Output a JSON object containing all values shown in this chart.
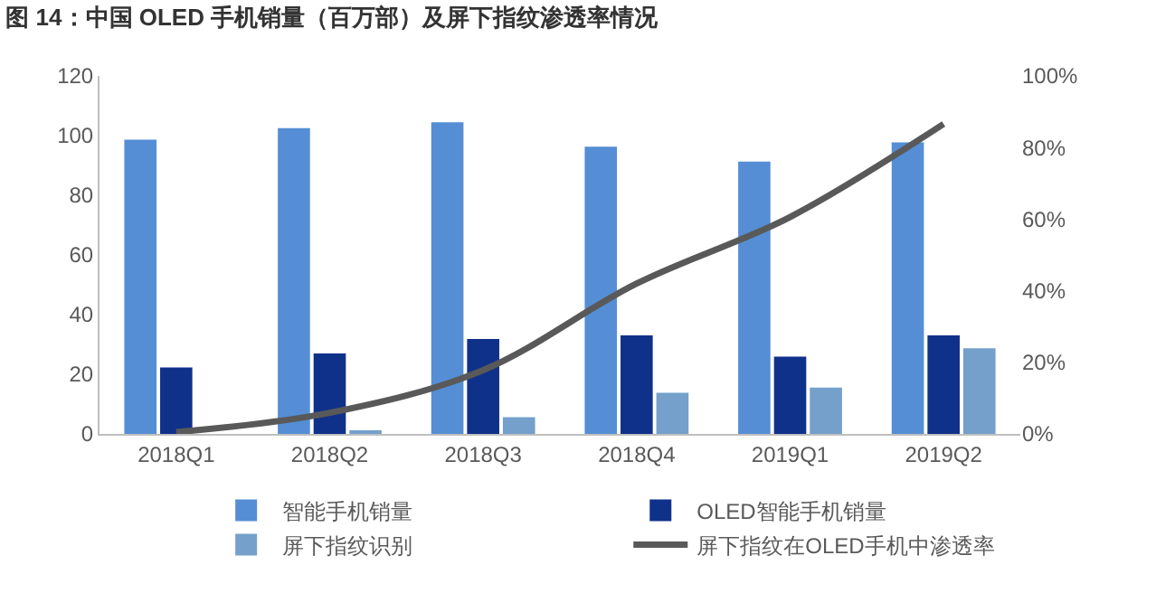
{
  "chart_data": {
    "type": "bar",
    "title": "图 14：中国 OLED 手机销量（百万部）及屏下指纹渗透率情况",
    "categories": [
      "2018Q1",
      "2018Q2",
      "2018Q3",
      "2018Q4",
      "2019Q1",
      "2019Q2"
    ],
    "series": [
      {
        "name": "智能手机销量",
        "color": "#558ed5",
        "values": [
          98.6,
          102.5,
          104.5,
          96.3,
          91.3,
          97.7
        ]
      },
      {
        "name": "OLED智能手机销量",
        "color": "#10318a",
        "values": [
          22.3,
          27,
          31.8,
          33,
          25.9,
          33
        ]
      },
      {
        "name": "屏下指纹识别",
        "color": "#74a0cb",
        "values": [
          0,
          1,
          5.6,
          13.8,
          15.5,
          28.7
        ]
      },
      {
        "name": "屏下指纹在OLED手机中渗透率",
        "color": "#595959",
        "type": "line",
        "axis": "y2",
        "values": [
          0.5,
          5.9,
          17.8,
          42,
          60.6,
          86.6
        ]
      }
    ],
    "ylim": [
      0,
      120
    ],
    "yticks": [
      0,
      20,
      40,
      60,
      80,
      100,
      120
    ],
    "y2lim": [
      0,
      100
    ],
    "y2ticks": [
      {
        "value": 0,
        "label": "0%"
      },
      {
        "value": 20,
        "label": "20%"
      },
      {
        "value": 40,
        "label": "40%"
      },
      {
        "value": 60,
        "label": "60%"
      },
      {
        "value": 80,
        "label": "80%"
      },
      {
        "value": 100,
        "label": "100%"
      }
    ],
    "legend": "bottom",
    "marker": "none",
    "line_style": "solid"
  }
}
